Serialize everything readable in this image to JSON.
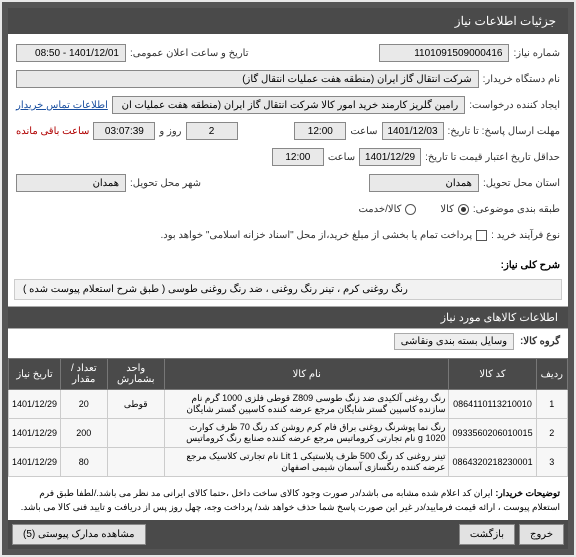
{
  "header": "جزئیات اطلاعات نیاز",
  "form": {
    "need_no_label": "شماره نیاز:",
    "need_no": "1101091509000416",
    "announce_label": "تاریخ و ساعت اعلان عمومی:",
    "announce": "1401/12/01 - 08:50",
    "buyer_label": "نام دستگاه خریدار:",
    "buyer": "شرکت انتقال گاز ایران (منطقه هفت عملیات انتقال گاز)",
    "requester_label": "ایجاد کننده درخواست:",
    "requester": "رامین گلریز کارمند خرید امور کالا شرکت انتقال گاز ایران (منطقه هفت عملیات ان",
    "contact_link": "اطلاعات تماس خریدار",
    "deadline_label": "مهلت ارسال پاسخ: تا تاریخ:",
    "deadline_date": "1401/12/03",
    "time_label": "ساعت",
    "deadline_time": "12:00",
    "days": "2",
    "day_word": "روز و",
    "remain_time": "03:07:39",
    "remain_label": "ساعت باقی مانده",
    "validity_label": "حداقل تاریخ اعتبار قیمت تا تاریخ:",
    "validity_date": "1401/12/29",
    "validity_time": "12:00",
    "province_label": "استان محل تحویل:",
    "province": "همدان",
    "city_label": "شهر محل تحویل:",
    "city": "همدان",
    "class_label": "طبقه بندی موضوعی:",
    "class_goods": "کالا",
    "class_service": "کالا/خدمت",
    "process_label": "نوع فرآیند خرید :",
    "process_note": "پرداخت تمام یا بخشی از مبلغ خرید،از محل \"اسناد خزانه اسلامی\" خواهد بود."
  },
  "need_short": {
    "label": "شرح کلی نیاز:",
    "text": "رنگ روغنی کرم ، تینر رنگ روغنی ، ضد رنگ روغنی طوسی ( طبق شرح استعلام پیوست شده )"
  },
  "goods_header": "اطلاعات کالاهای مورد نیاز",
  "group": {
    "label": "گروه کالا:",
    "value": "وسایل بسته بندی ونقاشی"
  },
  "table": {
    "cols": [
      "ردیف",
      "کد کالا",
      "نام کالا",
      "واحد بشمارش",
      "تعداد / مقدار",
      "تاریخ نیاز"
    ],
    "rows": [
      [
        "1",
        "0864110113210010",
        "رنگ روغنی آلکیدی ضد زنگ طوسی Z809 قوطی فلزی 1000 گرم نام سازنده کاسپین گستر شایگان مرجع عرضه کننده کاسپین گستر شایگان",
        "قوطی",
        "20",
        "1401/12/29"
      ],
      [
        "2",
        "0933560206010015",
        "رنگ نما پوشرنگ روغنی براق فام کرم روشن کد رنگ 70 ظرف کوارت 1020 g نام تجارتی کروماتیس مرجع عرضه کننده صنایع رنگ کروماتیس",
        "",
        "200",
        "1401/12/29"
      ],
      [
        "3",
        "0864320218230001",
        "تینر روغنی کد رنگ 500 ظرف پلاستیکی Lit 1 نام تجارتی کلاسیک مرجع عرضه کننده رنگسازی آسمان شیمی اصفهان",
        "",
        "80",
        "1401/12/29"
      ]
    ]
  },
  "notes": {
    "label": "توضیحات خریدار:",
    "text": "ایران کد اعلام شده مشابه می باشد/در صورت وجود کالای ساخت داخل ،حتما کالای ایرانی مد نظر می باشد./لطفا طبق فرم استعلام پیوست ، ارائه قیمت فرمایید/در غیر این صورت پاسخ شما حذف خواهد شد/ پرداخت وجه، چهل روز پس از دریافت و تایید فنی کالا می باشد."
  },
  "footer": {
    "attach": "مشاهده مدارک پیوستی (5)",
    "back": "بازگشت",
    "exit": "خروج"
  }
}
